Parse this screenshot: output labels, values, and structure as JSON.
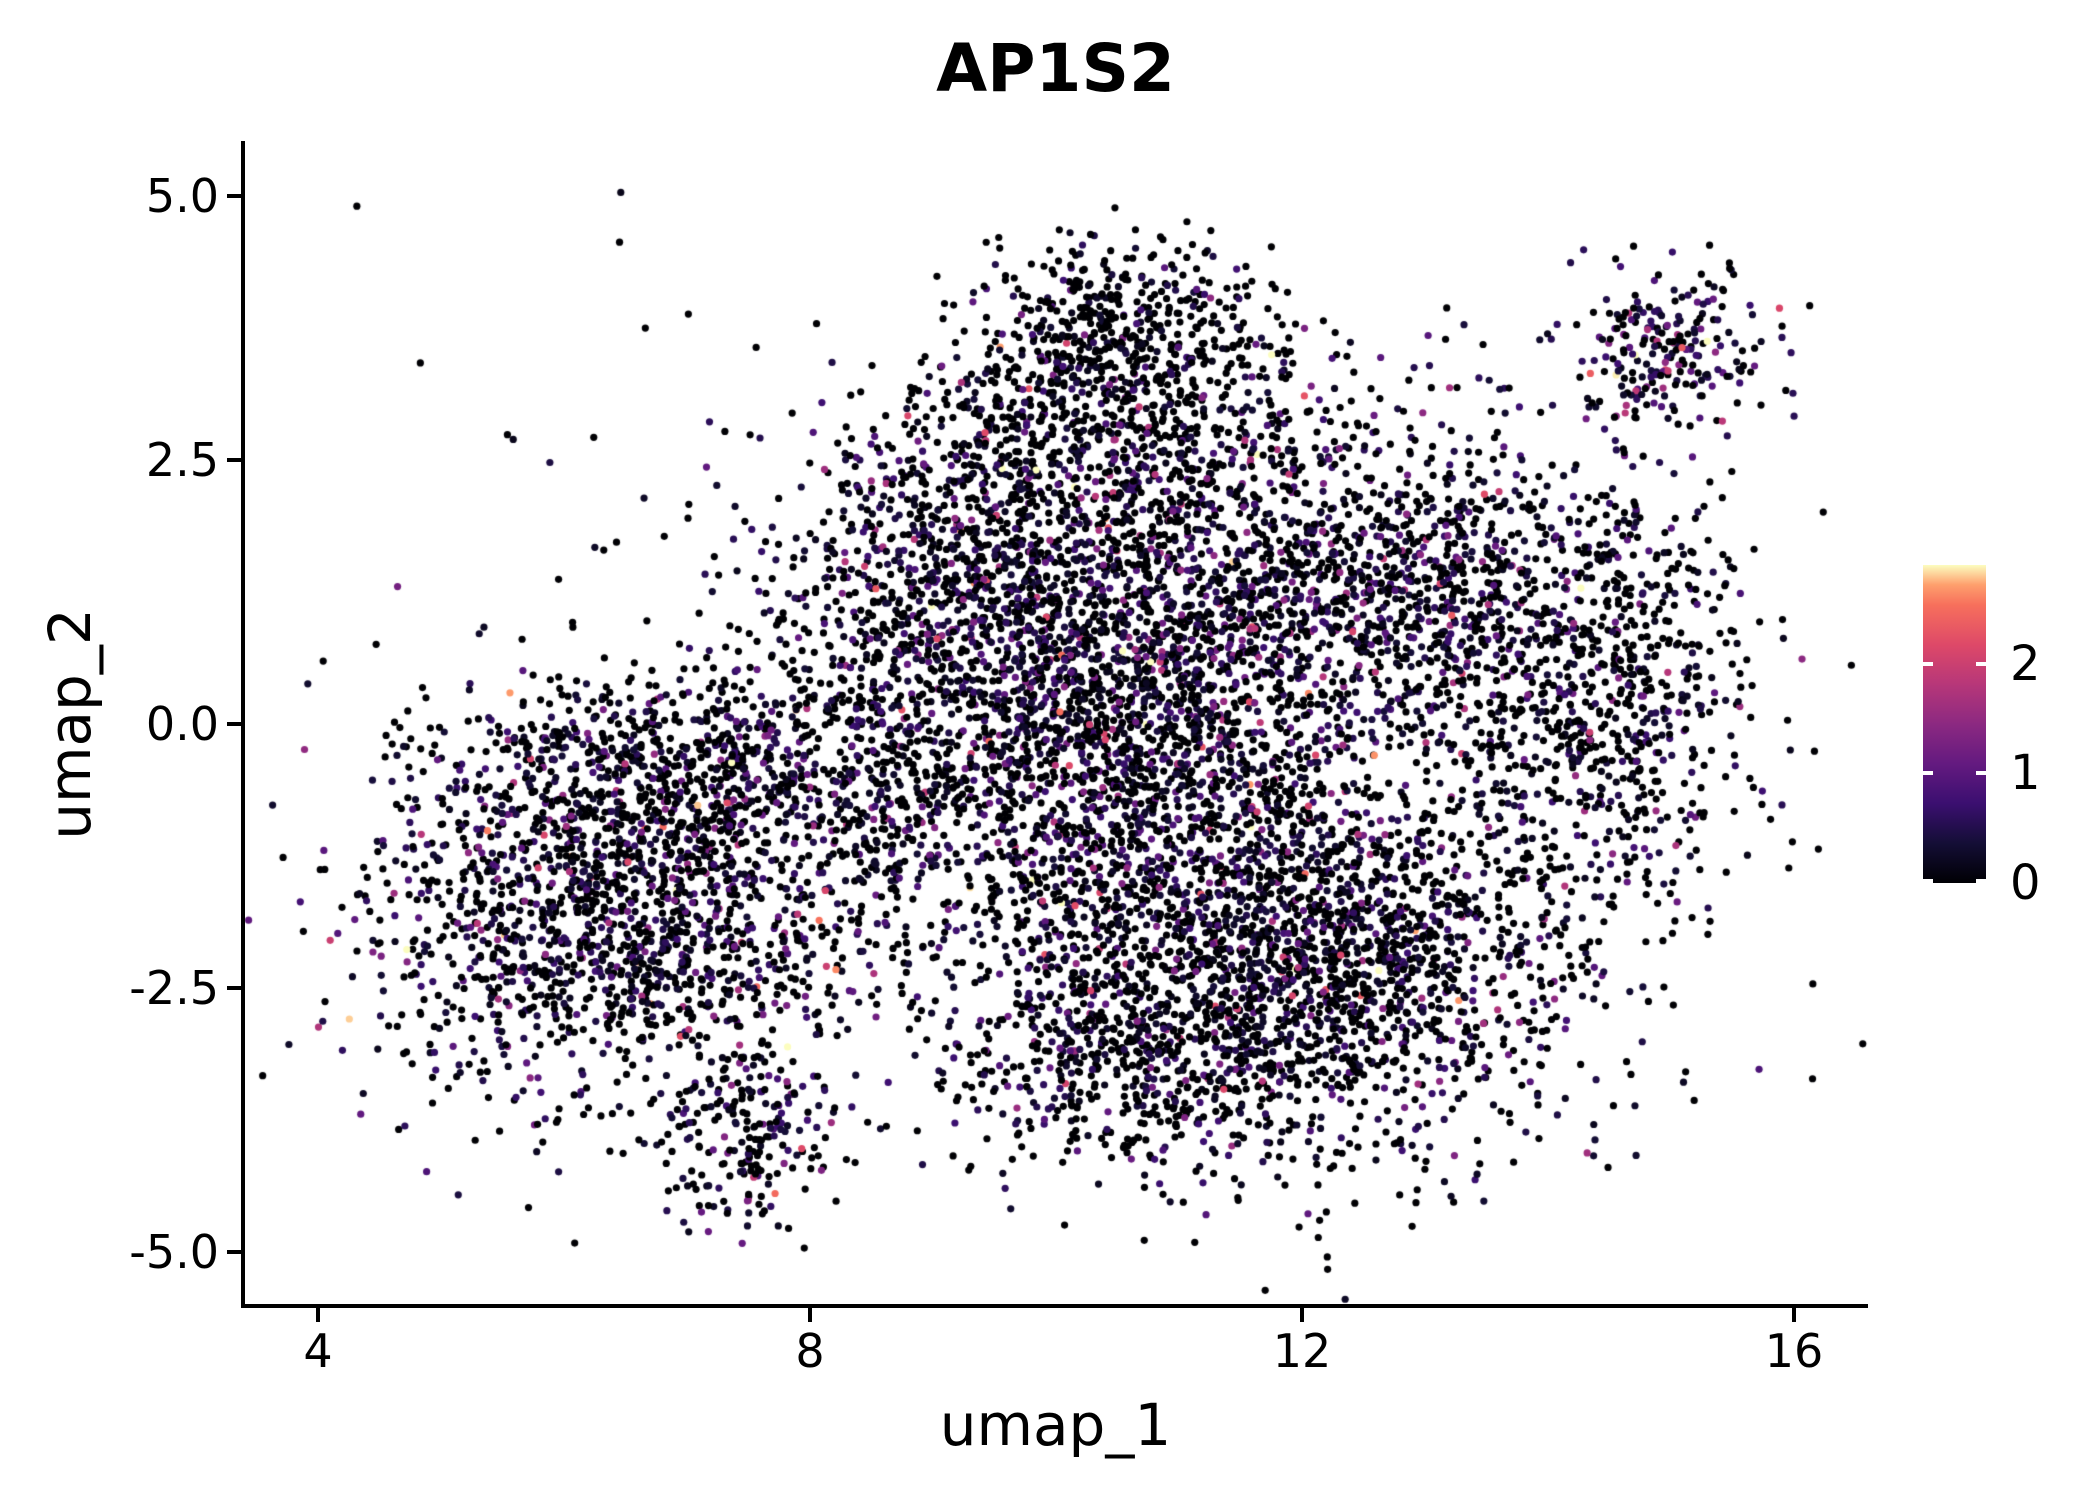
{
  "title": "AP1S2",
  "chart_data": {
    "type": "scatter",
    "title": "AP1S2",
    "xlabel": "umap_1",
    "ylabel": "umap_2",
    "x_ticks": [
      "4",
      "8",
      "12",
      "16"
    ],
    "x_tick_values": [
      4,
      8,
      12,
      16
    ],
    "y_ticks": [
      "5.0",
      "2.5",
      "0.0",
      "-2.5",
      "-5.0"
    ],
    "y_tick_values": [
      5.0,
      2.5,
      0.0,
      -2.5,
      -5.0
    ],
    "x_range": [
      3.4,
      16.6
    ],
    "y_range": [
      -5.5,
      5.5
    ],
    "grid": false,
    "legend": {
      "type": "colorbar",
      "position": "right",
      "ticks": [
        "0",
        "1",
        "2"
      ],
      "tick_values": [
        0,
        1,
        2
      ],
      "min": 0,
      "max": 2.9
    },
    "colormap": {
      "name": "magma",
      "stops": [
        [
          0.0,
          "#000004"
        ],
        [
          0.125,
          "#140e36"
        ],
        [
          0.25,
          "#3b0f70"
        ],
        [
          0.375,
          "#641a80"
        ],
        [
          0.5,
          "#8c2981"
        ],
        [
          0.625,
          "#b73779"
        ],
        [
          0.75,
          "#de4968"
        ],
        [
          0.875,
          "#f7705c"
        ],
        [
          0.9375,
          "#fe9f6d"
        ],
        [
          1.0,
          "#fcfdbf"
        ]
      ]
    },
    "point_radius_px": 3.6,
    "seed": 42,
    "zero_expression_color": "#000004",
    "clusters": [
      {
        "name": "top-protrusion",
        "u1": 10.55,
        "u2": 3.75,
        "sd1": 0.6,
        "sd2": 0.42,
        "n": 450,
        "p0": 0.8,
        "scale": 0.4
      },
      {
        "name": "top-neck",
        "u1": 10.4,
        "u2": 2.7,
        "sd1": 0.85,
        "sd2": 0.5,
        "n": 600,
        "p0": 0.62,
        "scale": 0.45
      },
      {
        "name": "upper-center-left",
        "u1": 9.4,
        "u2": 1.4,
        "sd1": 0.85,
        "sd2": 0.75,
        "n": 900,
        "p0": 0.52,
        "scale": 0.5
      },
      {
        "name": "center",
        "u1": 10.6,
        "u2": 0.4,
        "sd1": 0.9,
        "sd2": 0.9,
        "n": 1300,
        "p0": 0.5,
        "scale": 0.52
      },
      {
        "name": "center-right-upper",
        "u1": 12.6,
        "u2": 1.3,
        "sd1": 1.05,
        "sd2": 0.85,
        "n": 1300,
        "p0": 0.52,
        "scale": 0.5
      },
      {
        "name": "right-edge",
        "u1": 14.4,
        "u2": 0.2,
        "sd1": 0.65,
        "sd2": 1.0,
        "n": 650,
        "p0": 0.68,
        "scale": 0.42
      },
      {
        "name": "mid-low-band",
        "u1": 10.6,
        "u2": -1.2,
        "sd1": 1.4,
        "sd2": 0.75,
        "n": 1100,
        "p0": 0.55,
        "scale": 0.48
      },
      {
        "name": "bottom-right-mass",
        "u1": 12.3,
        "u2": -2.3,
        "sd1": 1.05,
        "sd2": 0.85,
        "n": 1500,
        "p0": 0.62,
        "scale": 0.45
      },
      {
        "name": "bottom-center",
        "u1": 10.6,
        "u2": -3.1,
        "sd1": 0.75,
        "sd2": 0.55,
        "n": 600,
        "p0": 0.62,
        "scale": 0.45
      },
      {
        "name": "left-lobe",
        "u1": 6.4,
        "u2": -1.9,
        "sd1": 1.0,
        "sd2": 0.85,
        "n": 1400,
        "p0": 0.55,
        "scale": 0.5
      },
      {
        "name": "left-lobe-upper",
        "u1": 6.7,
        "u2": -0.55,
        "sd1": 0.9,
        "sd2": 0.5,
        "n": 600,
        "p0": 0.58,
        "scale": 0.48
      },
      {
        "name": "bridge",
        "u1": 8.4,
        "u2": -0.4,
        "sd1": 0.75,
        "sd2": 0.75,
        "n": 450,
        "p0": 0.6,
        "scale": 0.45
      },
      {
        "name": "bottom-tail",
        "u1": 7.5,
        "u2": -3.95,
        "sd1": 0.33,
        "sd2": 0.45,
        "n": 200,
        "p0": 0.55,
        "scale": 0.5
      },
      {
        "name": "satellite-top-right",
        "u1": 15.0,
        "u2": 3.6,
        "sd1": 0.42,
        "sd2": 0.38,
        "n": 230,
        "p0": 0.38,
        "scale": 0.55
      },
      {
        "name": "sparse-halo",
        "u1": 10.4,
        "u2": -0.2,
        "sd1": 3.0,
        "sd2": 1.95,
        "n": 450,
        "p0": 0.75,
        "scale": 0.4
      }
    ]
  }
}
